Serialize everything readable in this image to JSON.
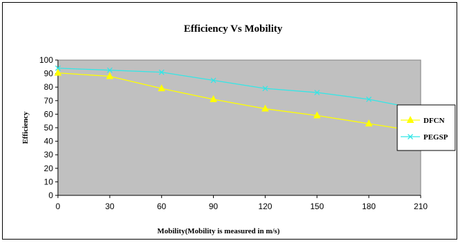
{
  "chart_data": {
    "type": "line",
    "title": "Efficiency Vs Mobility",
    "xlabel": "Mobility(Mobility is measured in m/s)",
    "ylabel": "Efficiency",
    "x": [
      0,
      30,
      60,
      90,
      120,
      150,
      180,
      210
    ],
    "ylim": [
      0,
      100
    ],
    "yticks": [
      0,
      10,
      20,
      30,
      40,
      50,
      60,
      70,
      80,
      90,
      100
    ],
    "grid": false,
    "legend_position": "right",
    "plot_background": "#c0c0c0",
    "series": [
      {
        "name": "DFCN",
        "color": "#ffff00",
        "marker": "triangle",
        "values": [
          90.5,
          88,
          79,
          71,
          64,
          59,
          53,
          47
        ]
      },
      {
        "name": "PEGSP",
        "color": "#33e6e6",
        "marker": "x",
        "values": [
          94,
          92.5,
          91,
          85,
          79,
          76,
          71,
          63.5
        ]
      }
    ]
  }
}
